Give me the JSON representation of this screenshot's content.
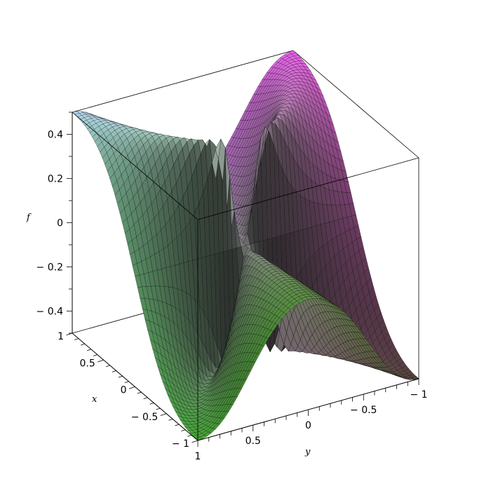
{
  "chart_data": {
    "type": "surface",
    "title": "",
    "xlabel": "x",
    "ylabel": "y",
    "zlabel": "f",
    "xlim": [
      -1,
      1
    ],
    "ylim": [
      -1,
      1
    ],
    "zlim": [
      -0.5,
      0.5
    ],
    "x_ticks": [
      "1",
      "0.5",
      "0",
      "− 0.5",
      "− 1"
    ],
    "x_tick_values": [
      1,
      0.5,
      0,
      -0.5,
      -1
    ],
    "y_ticks": [
      "1",
      "0.5",
      "0",
      "− 0.5",
      "− 1"
    ],
    "y_tick_values": [
      1,
      0.5,
      0,
      -0.5,
      -1
    ],
    "z_ticks": [
      "0.4",
      "0.2",
      "0",
      "− 0.2",
      "− 0.4"
    ],
    "z_tick_values": [
      0.4,
      0.2,
      0,
      -0.2,
      -0.4
    ],
    "corner_values": [
      {
        "x": -1,
        "y": 1,
        "z": -0.5
      },
      {
        "x": 1,
        "y": 1,
        "z": 0.5
      },
      {
        "x": -1,
        "y": -1,
        "z": -0.5
      },
      {
        "x": 1,
        "y": -1,
        "z": 0.5
      }
    ],
    "colors": {
      "near_front": "#50c83c",
      "near_back": "#c850c8",
      "left": "#96b4c8",
      "right": "#645046"
    },
    "grid": false,
    "box": true
  }
}
